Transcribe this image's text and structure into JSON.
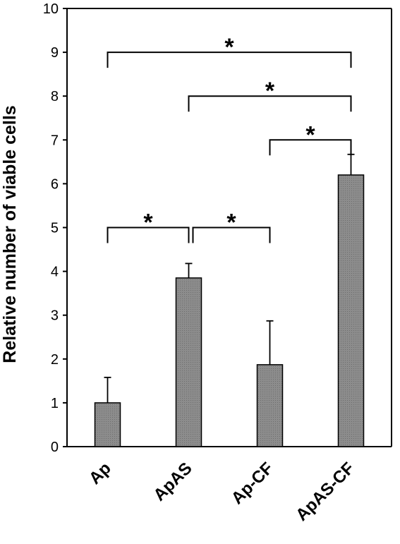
{
  "chart_data": {
    "type": "bar",
    "title": "",
    "xlabel": "",
    "ylabel": "Relative number of viable cells",
    "ylim": [
      0,
      10
    ],
    "yticks": [
      0,
      1,
      2,
      3,
      4,
      5,
      6,
      7,
      8,
      9,
      10
    ],
    "categories": [
      "Ap",
      "ApAS",
      "Ap-CF",
      "ApAS-CF"
    ],
    "values": [
      1.0,
      3.85,
      1.87,
      6.2
    ],
    "error_upper": [
      0.58,
      0.33,
      1.0,
      0.47
    ],
    "bar_color": "#8c8c8c",
    "grid": false,
    "significance": [
      {
        "from": "Ap",
        "to": "ApAS",
        "label": "*"
      },
      {
        "from": "ApAS",
        "to": "Ap-CF",
        "label": "*"
      },
      {
        "from": "Ap-CF",
        "to": "ApAS-CF",
        "label": "*"
      },
      {
        "from": "ApAS",
        "to": "ApAS-CF",
        "label": "*"
      },
      {
        "from": "Ap",
        "to": "ApAS-CF",
        "label": "*"
      }
    ]
  }
}
